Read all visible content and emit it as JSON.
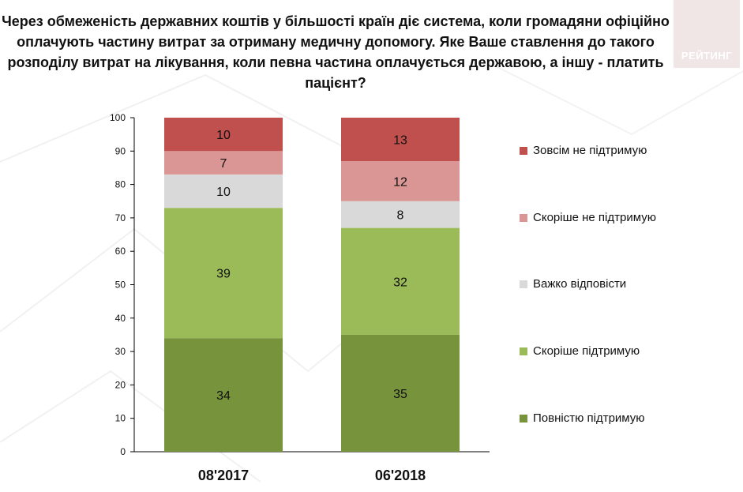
{
  "title": "Через обмеженість державних коштів у більшості країн діє система, коли громадяни офіційно оплачують частину витрат за отриману медичну допомогу. Яке Ваше ставлення до такого розподілу витрат на лікування, коли певна частина оплачується державою, а іншу - платить пацієнт?",
  "logo_text": "РЕЙТИНГ",
  "chart_data": {
    "type": "bar",
    "stacked": true,
    "title": "Через обмеженість державних коштів у більшості країн діє система, коли громадяни офіційно оплачують частину витрат за отриману медичну допомогу. Яке Ваше ставлення до такого розподілу витрат на лікування, коли певна частина оплачується державою, а іншу - платить пацієнт?",
    "categories": [
      "08'2017",
      "06'2018"
    ],
    "series": [
      {
        "name": "Повністю підтримую",
        "color": "#77933c",
        "values": [
          34,
          35
        ]
      },
      {
        "name": "Скоріше підтримую",
        "color": "#9bbb59",
        "values": [
          39,
          32
        ]
      },
      {
        "name": "Важко відповісти",
        "color": "#d9d9d9",
        "values": [
          10,
          8
        ]
      },
      {
        "name": "Скоріше не підтримую",
        "color": "#d99694",
        "values": [
          7,
          12
        ]
      },
      {
        "name": "Зовсім не підтримую",
        "color": "#c0504d",
        "values": [
          10,
          13
        ]
      }
    ],
    "yticks": [
      0,
      10,
      20,
      30,
      40,
      50,
      60,
      70,
      80,
      90,
      100
    ],
    "ylim": [
      0,
      100
    ],
    "xlabel": "",
    "ylabel": "",
    "legend_position": "right",
    "legend_order": [
      "Зовсім не підтримую",
      "Скоріше не підтримую",
      "Важко відповісти",
      "Скоріше підтримую",
      "Повністю підтримую"
    ]
  }
}
